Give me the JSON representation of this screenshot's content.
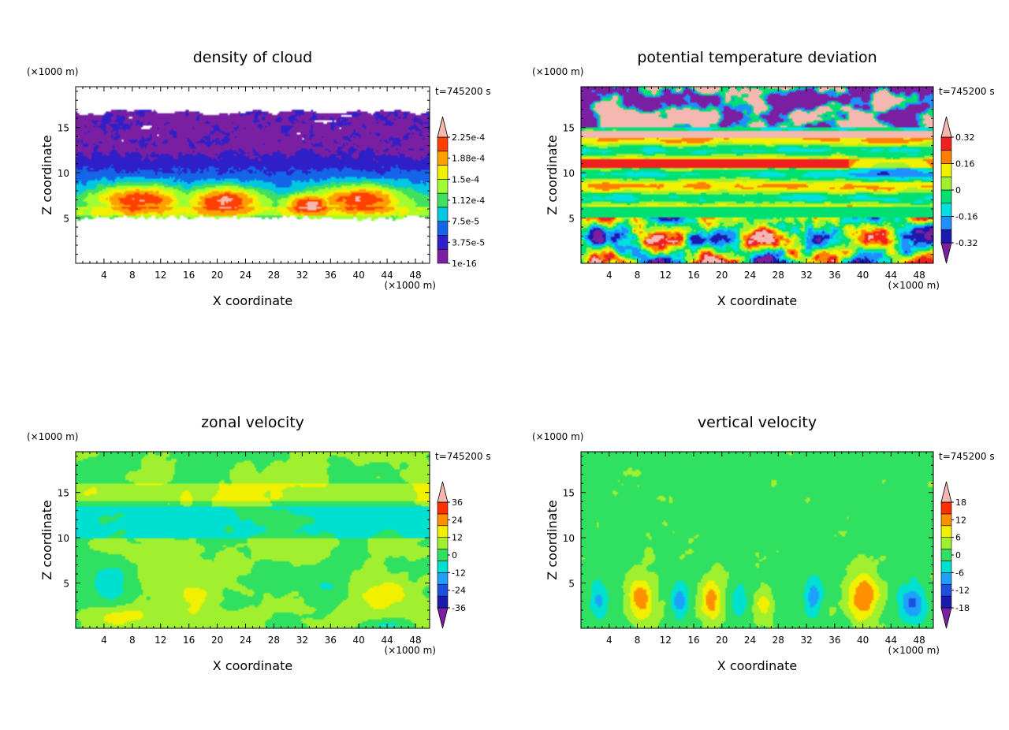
{
  "figure": {
    "time_label": "t=745200 s",
    "unit_label": "(×1000 m)",
    "x_label": "X coordinate",
    "y_label": "Z coordinate"
  },
  "chart_data": [
    {
      "type": "heatmap",
      "title": "density of cloud",
      "xlabel": "X coordinate",
      "ylabel": "Z coordinate",
      "x_unit": "(×1000 m)",
      "y_unit": "(×1000 m)",
      "time": "t=745200 s",
      "xlim": [
        0,
        50
      ],
      "ylim": [
        0,
        19.5
      ],
      "x_ticks": [
        4,
        8,
        12,
        16,
        20,
        24,
        28,
        32,
        36,
        40,
        44,
        48
      ],
      "y_ticks": [
        5,
        10,
        15
      ],
      "colorbar": {
        "levels": [
          "1e-16",
          "3.75e-5",
          "7.5e-5",
          "1.12e-4",
          "1.5e-4",
          "1.88e-4",
          "2.25e-4"
        ],
        "colors": [
          "#7b1fa2",
          "#2e1fc8",
          "#1565e8",
          "#00c8e0",
          "#40e060",
          "#a0ff30",
          "#f0f000",
          "#ffa000",
          "#ff4000",
          "#f4b8b0"
        ],
        "top_arrow": true,
        "bottom_arrow": false
      }
    },
    {
      "type": "heatmap",
      "title": "potential temperature deviation",
      "xlabel": "X coordinate",
      "ylabel": "Z coordinate",
      "x_unit": "(×1000 m)",
      "y_unit": "(×1000 m)",
      "time": "t=745200 s",
      "xlim": [
        0,
        50
      ],
      "ylim": [
        0,
        19.5
      ],
      "x_ticks": [
        4,
        8,
        12,
        16,
        20,
        24,
        28,
        32,
        36,
        40,
        44,
        48
      ],
      "y_ticks": [
        5,
        10,
        15
      ],
      "colorbar": {
        "levels": [
          "-0.32",
          "-0.16",
          "0",
          "0.16",
          "0.32"
        ],
        "colors": [
          "#7b1fa2",
          "#1a1ab0",
          "#1e90ff",
          "#00e0e0",
          "#00e070",
          "#a0f030",
          "#f0f000",
          "#ff8000",
          "#f02020",
          "#f4b8b0"
        ],
        "top_arrow": true,
        "bottom_arrow": true
      }
    },
    {
      "type": "heatmap",
      "title": "zonal velocity",
      "xlabel": "X coordinate",
      "ylabel": "Z coordinate",
      "x_unit": "(×1000 m)",
      "y_unit": "(×1000 m)",
      "time": "t=745200 s",
      "xlim": [
        0,
        50
      ],
      "ylim": [
        0,
        19.5
      ],
      "x_ticks": [
        4,
        8,
        12,
        16,
        20,
        24,
        28,
        32,
        36,
        40,
        44,
        48
      ],
      "y_ticks": [
        5,
        10,
        15
      ],
      "colorbar": {
        "levels": [
          "-36",
          "-24",
          "-12",
          "0",
          "12",
          "24",
          "36"
        ],
        "colors": [
          "#7b1fa2",
          "#1a1ab0",
          "#1e50e0",
          "#1ea0ff",
          "#00e0d0",
          "#30e060",
          "#a0f030",
          "#f0f000",
          "#ff9000",
          "#ff3000",
          "#f4b8b0"
        ],
        "top_arrow": true,
        "bottom_arrow": true
      }
    },
    {
      "type": "heatmap",
      "title": "vertical velocity",
      "xlabel": "X coordinate",
      "ylabel": "Z coordinate",
      "x_unit": "(×1000 m)",
      "y_unit": "(×1000 m)",
      "time": "t=745200 s",
      "xlim": [
        0,
        50
      ],
      "ylim": [
        0,
        19.5
      ],
      "x_ticks": [
        4,
        8,
        12,
        16,
        20,
        24,
        28,
        32,
        36,
        40,
        44,
        48
      ],
      "y_ticks": [
        5,
        10,
        15
      ],
      "colorbar": {
        "levels": [
          "-18",
          "-12",
          "-6",
          "0",
          "6",
          "12",
          "18"
        ],
        "colors": [
          "#7b1fa2",
          "#1a1ab0",
          "#1e50e0",
          "#1ea0ff",
          "#00e0d0",
          "#30e060",
          "#a0f030",
          "#f0f000",
          "#ff9000",
          "#ff3000",
          "#f4b8b0"
        ],
        "top_arrow": true,
        "bottom_arrow": true
      }
    }
  ]
}
